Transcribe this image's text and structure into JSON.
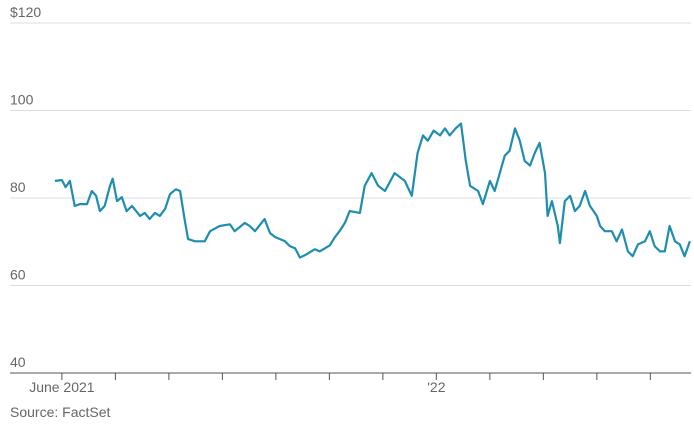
{
  "chart_data": {
    "type": "line",
    "source": "Source: FactSet",
    "color": "#1f8db0",
    "grid": true,
    "ylim": [
      40,
      120
    ],
    "yticks": [
      40,
      60,
      80,
      100,
      {
        "value": 120,
        "label": "$120"
      }
    ],
    "xlim": [
      -0.97,
      11.76
    ],
    "xticks": [
      {
        "value": 0,
        "label": "June 2021"
      },
      {
        "value": 7,
        "label": "'22"
      }
    ],
    "minor_xticks": [
      1,
      2,
      3,
      4,
      5,
      6,
      8,
      9,
      10,
      11
    ],
    "x": [
      -0.13,
      0,
      0.07,
      0.15,
      0.24,
      0.34,
      0.47,
      0.56,
      0.64,
      0.71,
      0.8,
      0.9,
      0.95,
      1.03,
      1.12,
      1.21,
      1.31,
      1.46,
      1.55,
      1.64,
      1.74,
      1.83,
      1.93,
      2.02,
      2.13,
      2.21,
      2.3,
      2.36,
      2.49,
      2.67,
      2.77,
      2.95,
      3.14,
      3.23,
      3.42,
      3.51,
      3.61,
      3.79,
      3.89,
      3.98,
      4.17,
      4.26,
      4.36,
      4.45,
      4.54,
      4.73,
      4.82,
      5.01,
      5.1,
      5.2,
      5.29,
      5.38,
      5.57,
      5.66,
      5.79,
      5.91,
      6.04,
      6.22,
      6.41,
      6.54,
      6.65,
      6.75,
      6.84,
      6.95,
      7.07,
      7.16,
      7.25,
      7.36,
      7.46,
      7.55,
      7.63,
      7.78,
      7.87,
      8.0,
      8.09,
      8.28,
      8.37,
      8.47,
      8.56,
      8.65,
      8.75,
      8.84,
      8.93,
      9.03,
      9.08,
      9.16,
      9.27,
      9.31,
      9.4,
      9.5,
      9.59,
      9.68,
      9.78,
      9.87,
      10.0,
      10.06,
      10.15,
      10.28,
      10.37,
      10.47,
      10.58,
      10.67,
      10.77,
      10.9,
      10.99,
      11.08,
      11.18,
      11.27,
      11.36,
      11.46,
      11.55,
      11.64,
      11.74
    ],
    "values": [
      83.9,
      84.1,
      82.5,
      83.9,
      78.2,
      78.6,
      78.6,
      81.6,
      80.5,
      77,
      78.2,
      82.8,
      84.4,
      79.3,
      80.2,
      77,
      78.2,
      75.9,
      76.6,
      75.2,
      76.6,
      75.9,
      77.5,
      80.9,
      82,
      81.6,
      74.7,
      70.6,
      70.1,
      70.1,
      72.4,
      73.6,
      74,
      72.4,
      74.3,
      73.6,
      72.4,
      75.2,
      72,
      71.1,
      70.1,
      69,
      68.5,
      66.4,
      66.9,
      68.3,
      67.8,
      69.2,
      71,
      72.6,
      74.3,
      77,
      76.6,
      82.8,
      85.7,
      82.8,
      81.6,
      85.7,
      83.9,
      80.5,
      90.3,
      94.3,
      93.1,
      95.4,
      94.3,
      95.9,
      94.3,
      95.9,
      97,
      88.5,
      82.8,
      81.6,
      78.6,
      83.9,
      81.6,
      89.7,
      90.8,
      95.9,
      93.1,
      88.5,
      87.4,
      90.3,
      92.6,
      85.7,
      75.9,
      79.3,
      73.6,
      69.7,
      79.3,
      80.5,
      77,
      78.2,
      81.6,
      78.2,
      75.9,
      73.6,
      72.4,
      72.4,
      70.1,
      72.8,
      67.8,
      66.7,
      69.4,
      70.1,
      72.4,
      69,
      67.8,
      67.8,
      73.6,
      70.1,
      69.4,
      66.7,
      70.1
    ]
  }
}
